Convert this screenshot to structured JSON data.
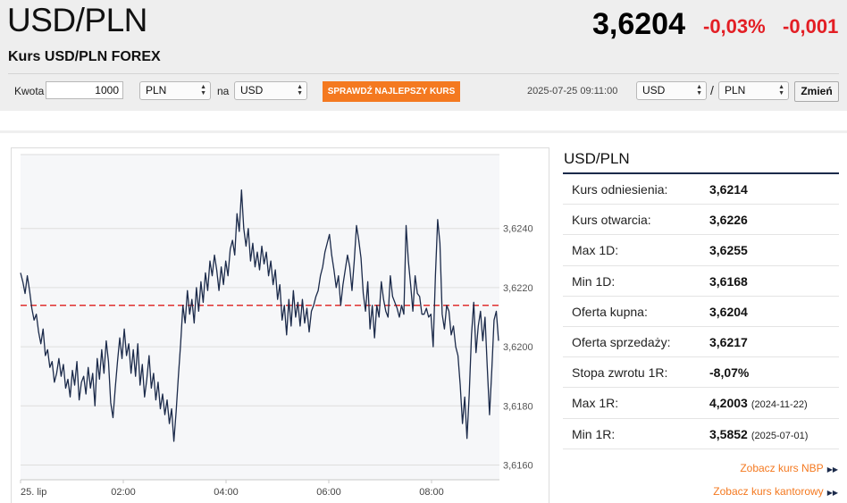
{
  "header": {
    "pair": "USD/PLN",
    "subtitle": "Kurs USD/PLN FOREX",
    "rate": "3,6204",
    "change_pct": "-0,03%",
    "change_abs": "-0,001",
    "change_color": "#e31e24"
  },
  "converter": {
    "amount_label": "Kwota",
    "amount_value": "1000",
    "from_currency": "PLN",
    "to_label": "na",
    "to_currency": "USD",
    "check_button": "SPRAWDŹ NAJLEPSZY KURS",
    "accent": "#f47920"
  },
  "pair_switch": {
    "timestamp": "2025-07-25 09:11:00",
    "base": "USD",
    "separator": "/",
    "quote": "PLN",
    "change_button": "Zmień"
  },
  "stats": {
    "title": "USD/PLN",
    "rows": [
      {
        "label": "Kurs odniesienia:",
        "value": "3,6214",
        "date": ""
      },
      {
        "label": "Kurs otwarcia:",
        "value": "3,6226",
        "date": ""
      },
      {
        "label": "Max 1D:",
        "value": "3,6255",
        "date": ""
      },
      {
        "label": "Min 1D:",
        "value": "3,6168",
        "date": ""
      },
      {
        "label": "Oferta kupna:",
        "value": "3,6204",
        "date": ""
      },
      {
        "label": "Oferta sprzedaży:",
        "value": "3,6217",
        "date": ""
      },
      {
        "label": "Stopa zwrotu 1R:",
        "value": "-8,07%",
        "date": ""
      },
      {
        "label": "Max 1R:",
        "value": "4,2003",
        "date": "(2024-11-22)"
      },
      {
        "label": "Min 1R:",
        "value": "3,5852",
        "date": "(2025-07-01)"
      }
    ],
    "link_nbp": "Zobacz kurs NBP",
    "link_kantor": "Zobacz kurs kantorowy"
  },
  "chart_data": {
    "type": "line",
    "x_labels": [
      "25. lip",
      "02:00",
      "04:00",
      "06:00",
      "08:00"
    ],
    "y_ticks": [
      "3,6160",
      "3,6180",
      "3,6200",
      "3,6220",
      "3,6240"
    ],
    "ylim": [
      3.6155,
      3.6265
    ],
    "reference_line": 3.6214,
    "reference_color": "#e03030",
    "line_color": "#1b2a4a",
    "grid": true,
    "series": [
      {
        "values": [
          3.6225,
          3.6222,
          3.6218,
          3.6224,
          3.6219,
          3.6213,
          3.6209,
          3.6211,
          3.6205,
          3.6201,
          3.6206,
          3.6197,
          3.6199,
          3.6193,
          3.6195,
          3.6188,
          3.6191,
          3.6196,
          3.619,
          3.6194,
          3.6186,
          3.6189,
          3.6183,
          3.6192,
          3.6187,
          3.6195,
          3.6182,
          3.6188,
          3.619,
          3.6184,
          3.6193,
          3.6186,
          3.6191,
          3.618,
          3.6196,
          3.6189,
          3.6199,
          3.6191,
          3.6202,
          3.6195,
          3.6181,
          3.6176,
          3.6186,
          3.6195,
          3.6203,
          3.6196,
          3.6206,
          3.6197,
          3.6201,
          3.6191,
          3.6199,
          3.619,
          3.6201,
          3.6187,
          3.6194,
          3.6183,
          3.6189,
          3.6197,
          3.6186,
          3.6191,
          3.6182,
          3.6188,
          3.6179,
          3.6184,
          3.6177,
          3.6182,
          3.6174,
          3.6179,
          3.6168,
          3.6178,
          3.619,
          3.6201,
          3.6214,
          3.6208,
          3.6219,
          3.6211,
          3.6216,
          3.6208,
          3.622,
          3.6212,
          3.6222,
          3.6215,
          3.6225,
          3.6219,
          3.6229,
          3.6224,
          3.6231,
          3.6226,
          3.6219,
          3.6227,
          3.6221,
          3.6229,
          3.6224,
          3.6233,
          3.6236,
          3.6231,
          3.6245,
          3.6239,
          3.6253,
          3.624,
          3.6234,
          3.624,
          3.6229,
          3.6235,
          3.6227,
          3.6232,
          3.6226,
          3.6234,
          3.6228,
          3.6232,
          3.6224,
          3.6229,
          3.6221,
          3.6226,
          3.6216,
          3.6221,
          3.6209,
          3.6214,
          3.6204,
          3.6216,
          3.6207,
          3.6219,
          3.621,
          3.6215,
          3.6207,
          3.6216,
          3.6208,
          3.6213,
          3.6205,
          3.6212,
          3.6214,
          3.6217,
          3.6219,
          3.6224,
          3.6227,
          3.6232,
          3.6235,
          3.6238,
          3.6231,
          3.6226,
          3.622,
          3.6224,
          3.6214,
          3.6221,
          3.6226,
          3.6231,
          3.6227,
          3.6219,
          3.6229,
          3.6241,
          3.6236,
          3.623,
          3.6218,
          3.6212,
          3.6222,
          3.6206,
          3.6214,
          3.6203,
          3.6214,
          3.621,
          3.6222,
          3.6216,
          3.6212,
          3.621,
          3.6224,
          3.6217,
          3.6215,
          3.6213,
          3.621,
          3.6214,
          3.6211,
          3.6241,
          3.6229,
          3.6221,
          3.6212,
          3.6224,
          3.6218,
          3.6217,
          3.6211,
          3.6211,
          3.6213,
          3.621,
          3.6211,
          3.62,
          3.6224,
          3.6243,
          3.6235,
          3.6211,
          3.6206,
          3.6214,
          3.6212,
          3.6204,
          3.6207,
          3.62,
          3.6197,
          3.6187,
          3.6174,
          3.6183,
          3.6169,
          3.6184,
          3.6204,
          3.6215,
          3.6198,
          3.6207,
          3.6212,
          3.6202,
          3.621,
          3.6193,
          3.6177,
          3.6192,
          3.6209,
          3.6212,
          3.6202
        ]
      }
    ]
  }
}
